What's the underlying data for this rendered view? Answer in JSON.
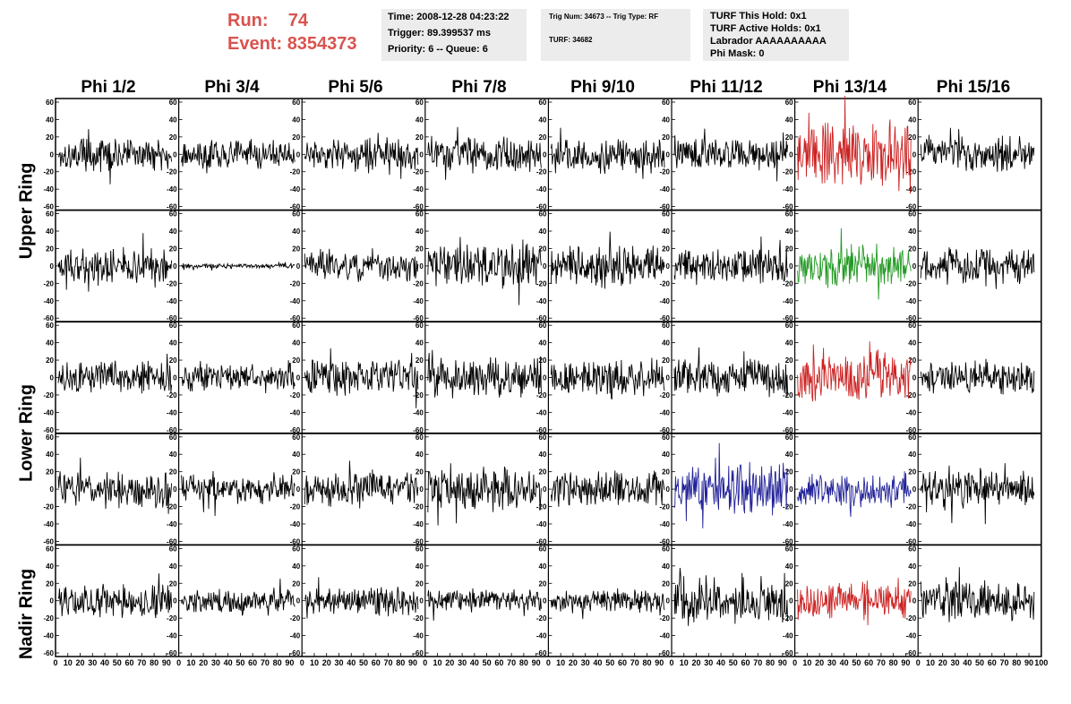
{
  "run_info": {
    "run_label": "Run:",
    "run_value": "74",
    "event_label": "Event:",
    "event_value": "8354373"
  },
  "time_box": {
    "time": "Time: 2008-12-28 04:23:22",
    "trigger": "Trigger: 89.399537 ms",
    "priority": "Priority: 6 -- Queue: 6"
  },
  "trig_box": {
    "trig": "Trig Num: 34673 -- Trig Type: RF",
    "turf": "TURF: 34682"
  },
  "turf_box": {
    "this_hold": "TURF This Hold: 0x1",
    "active_holds": "TURF Active Holds: 0x1",
    "labrador": "Labrador AAAAAAAAAA",
    "phi_mask": "Phi Mask: 0"
  },
  "columns": [
    "Phi 1/2",
    "Phi 3/4",
    "Phi 5/6",
    "Phi 7/8",
    "Phi 9/10",
    "Phi 11/12",
    "Phi 13/14",
    "Phi 15/16"
  ],
  "rings": {
    "upper": "Upper Ring",
    "lower": "Lower Ring",
    "nadir": "Nadir Ring"
  },
  "axis": {
    "y_ticks": [
      60,
      40,
      20,
      0,
      -20,
      -40,
      -60
    ],
    "x_tick_labels": [
      "0",
      "10",
      "20",
      "30",
      "40",
      "50",
      "60",
      "70",
      "80",
      "90",
      "100"
    ]
  },
  "colors": {
    "default_trace": "#000000",
    "triggered_red": "#cc2222",
    "triggered_green": "#229922",
    "triggered_blue": "#222299",
    "run_info_text": "#d9534f",
    "box_background": "#ececec"
  },
  "chart_data": {
    "type": "line",
    "grid_rows": 5,
    "grid_cols": 8,
    "xlim": [
      0,
      100
    ],
    "ylim": [
      -60,
      60
    ],
    "panels": [
      {
        "row": 0,
        "col": 0,
        "color": "default_trace",
        "amplitude": 14
      },
      {
        "row": 0,
        "col": 1,
        "color": "default_trace",
        "amplitude": 12
      },
      {
        "row": 0,
        "col": 2,
        "color": "default_trace",
        "amplitude": 14
      },
      {
        "row": 0,
        "col": 3,
        "color": "default_trace",
        "amplitude": 16
      },
      {
        "row": 0,
        "col": 4,
        "color": "default_trace",
        "amplitude": 14
      },
      {
        "row": 0,
        "col": 5,
        "color": "default_trace",
        "amplitude": 14
      },
      {
        "row": 0,
        "col": 6,
        "color": "triggered_red",
        "amplitude": 26
      },
      {
        "row": 0,
        "col": 7,
        "color": "default_trace",
        "amplitude": 15
      },
      {
        "row": 1,
        "col": 0,
        "color": "default_trace",
        "amplitude": 16
      },
      {
        "row": 1,
        "col": 1,
        "color": "default_trace",
        "amplitude": 2
      },
      {
        "row": 1,
        "col": 2,
        "color": "default_trace",
        "amplitude": 14
      },
      {
        "row": 1,
        "col": 3,
        "color": "default_trace",
        "amplitude": 18
      },
      {
        "row": 1,
        "col": 4,
        "color": "default_trace",
        "amplitude": 18
      },
      {
        "row": 1,
        "col": 5,
        "color": "default_trace",
        "amplitude": 15
      },
      {
        "row": 1,
        "col": 6,
        "color": "triggered_green",
        "amplitude": 18
      },
      {
        "row": 1,
        "col": 7,
        "color": "default_trace",
        "amplitude": 16
      },
      {
        "row": 2,
        "col": 0,
        "color": "default_trace",
        "amplitude": 14
      },
      {
        "row": 2,
        "col": 1,
        "color": "default_trace",
        "amplitude": 14
      },
      {
        "row": 2,
        "col": 2,
        "color": "default_trace",
        "amplitude": 16
      },
      {
        "row": 2,
        "col": 3,
        "color": "default_trace",
        "amplitude": 18
      },
      {
        "row": 2,
        "col": 4,
        "color": "default_trace",
        "amplitude": 14
      },
      {
        "row": 2,
        "col": 5,
        "color": "default_trace",
        "amplitude": 16
      },
      {
        "row": 2,
        "col": 6,
        "color": "triggered_red",
        "amplitude": 22
      },
      {
        "row": 2,
        "col": 7,
        "color": "default_trace",
        "amplitude": 14
      },
      {
        "row": 3,
        "col": 0,
        "color": "default_trace",
        "amplitude": 16
      },
      {
        "row": 3,
        "col": 1,
        "color": "default_trace",
        "amplitude": 12
      },
      {
        "row": 3,
        "col": 2,
        "color": "default_trace",
        "amplitude": 14
      },
      {
        "row": 3,
        "col": 3,
        "color": "default_trace",
        "amplitude": 18
      },
      {
        "row": 3,
        "col": 4,
        "color": "default_trace",
        "amplitude": 16
      },
      {
        "row": 3,
        "col": 5,
        "color": "triggered_blue",
        "amplitude": 22
      },
      {
        "row": 3,
        "col": 6,
        "color": "triggered_blue",
        "amplitude": 16
      },
      {
        "row": 3,
        "col": 7,
        "color": "default_trace",
        "amplitude": 16
      },
      {
        "row": 4,
        "col": 0,
        "color": "default_trace",
        "amplitude": 14
      },
      {
        "row": 4,
        "col": 1,
        "color": "default_trace",
        "amplitude": 10
      },
      {
        "row": 4,
        "col": 2,
        "color": "default_trace",
        "amplitude": 12
      },
      {
        "row": 4,
        "col": 3,
        "color": "default_trace",
        "amplitude": 10
      },
      {
        "row": 4,
        "col": 4,
        "color": "default_trace",
        "amplitude": 10
      },
      {
        "row": 4,
        "col": 5,
        "color": "default_trace",
        "amplitude": 20
      },
      {
        "row": 4,
        "col": 6,
        "color": "triggered_red",
        "amplitude": 16
      },
      {
        "row": 4,
        "col": 7,
        "color": "default_trace",
        "amplitude": 18
      }
    ]
  }
}
